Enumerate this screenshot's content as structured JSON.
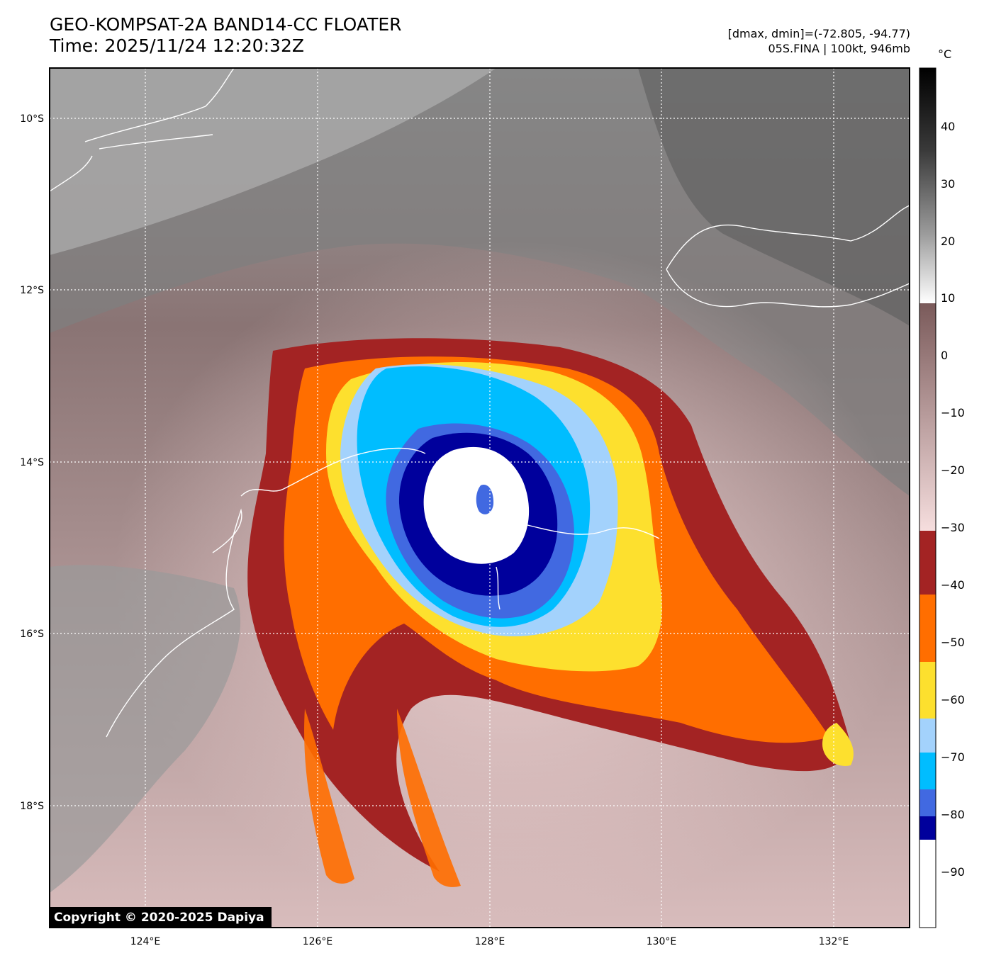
{
  "header": {
    "title_line1": "GEO-KOMPSAT-2A BAND14-CC FLOATER",
    "title_line2": "Time: 2025/11/24 12:20:32Z",
    "info_line1": "[dmax, dmin]=(-72.805, -94.77)",
    "info_line2": "05S.FINA | 100kt, 946mb"
  },
  "map": {
    "lon_labels": [
      "124°E",
      "126°E",
      "128°E",
      "130°E",
      "132°E"
    ],
    "lat_labels": [
      "10°S",
      "12°S",
      "14°S",
      "16°S",
      "18°S"
    ],
    "copyright": "Copyright © 2020-2025 Dapiya"
  },
  "colorbar": {
    "unit": "°C",
    "ticks": [
      "40",
      "30",
      "20",
      "10",
      "0",
      "−10",
      "−20",
      "−30",
      "−40",
      "−50",
      "−60",
      "−70",
      "−80",
      "−90"
    ],
    "palette": {
      "dark_red": "#a32323",
      "orange": "#ff6e00",
      "yellow": "#fde02e",
      "light_blue": "#a3d2fc",
      "cyan": "#00bdff",
      "royal_blue": "#4169e1",
      "navy": "#00009c",
      "white": "#ffffff"
    }
  }
}
